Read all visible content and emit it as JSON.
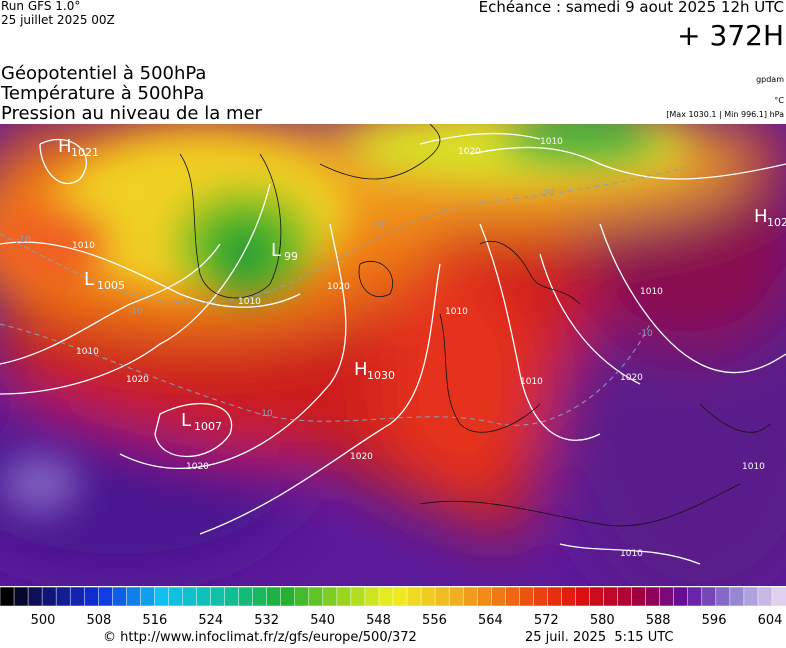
{
  "header": {
    "run": "Run GFS 1.0°",
    "run_date": "25 juillet 2025 00Z",
    "valid": "Echéance : samedi 9 aout 2025 12h UTC",
    "lead": "+ 372H"
  },
  "titles": [
    "Géopotentiel à 500hPa",
    "Température à 500hPa",
    "Pression au niveau de la mer"
  ],
  "units": {
    "geopotential": "gpdam",
    "temperature": "°C",
    "pressure": "[Max 1030.1 | Min 996.1] hPa"
  },
  "centers": [
    {
      "type": "H",
      "value": "1021"
    },
    {
      "type": "L",
      "value": "1005"
    },
    {
      "type": "L",
      "value": "99"
    },
    {
      "type": "H",
      "value": "1030"
    },
    {
      "type": "L",
      "value": "1007"
    },
    {
      "type": "H",
      "value": "102"
    }
  ],
  "isobar_labels": [
    "1020",
    "1010",
    "1010",
    "1010",
    "1010",
    "1020",
    "1020",
    "1020",
    "1020",
    "1010",
    "1010",
    "1020",
    "1010",
    "1010",
    "1010"
  ],
  "isotherm_labels": [
    "-20",
    "-20",
    "-10",
    "-10",
    "-10",
    "-10"
  ],
  "colorbar": {
    "ticks": [
      500,
      508,
      516,
      524,
      532,
      540,
      548,
      556,
      564,
      572,
      580,
      588,
      596,
      604
    ]
  },
  "footer": {
    "source": "© http://www.infoclimat.fr/z/gfs/europe/500/372",
    "generated": "25 juil. 2025  5:15 UTC"
  }
}
